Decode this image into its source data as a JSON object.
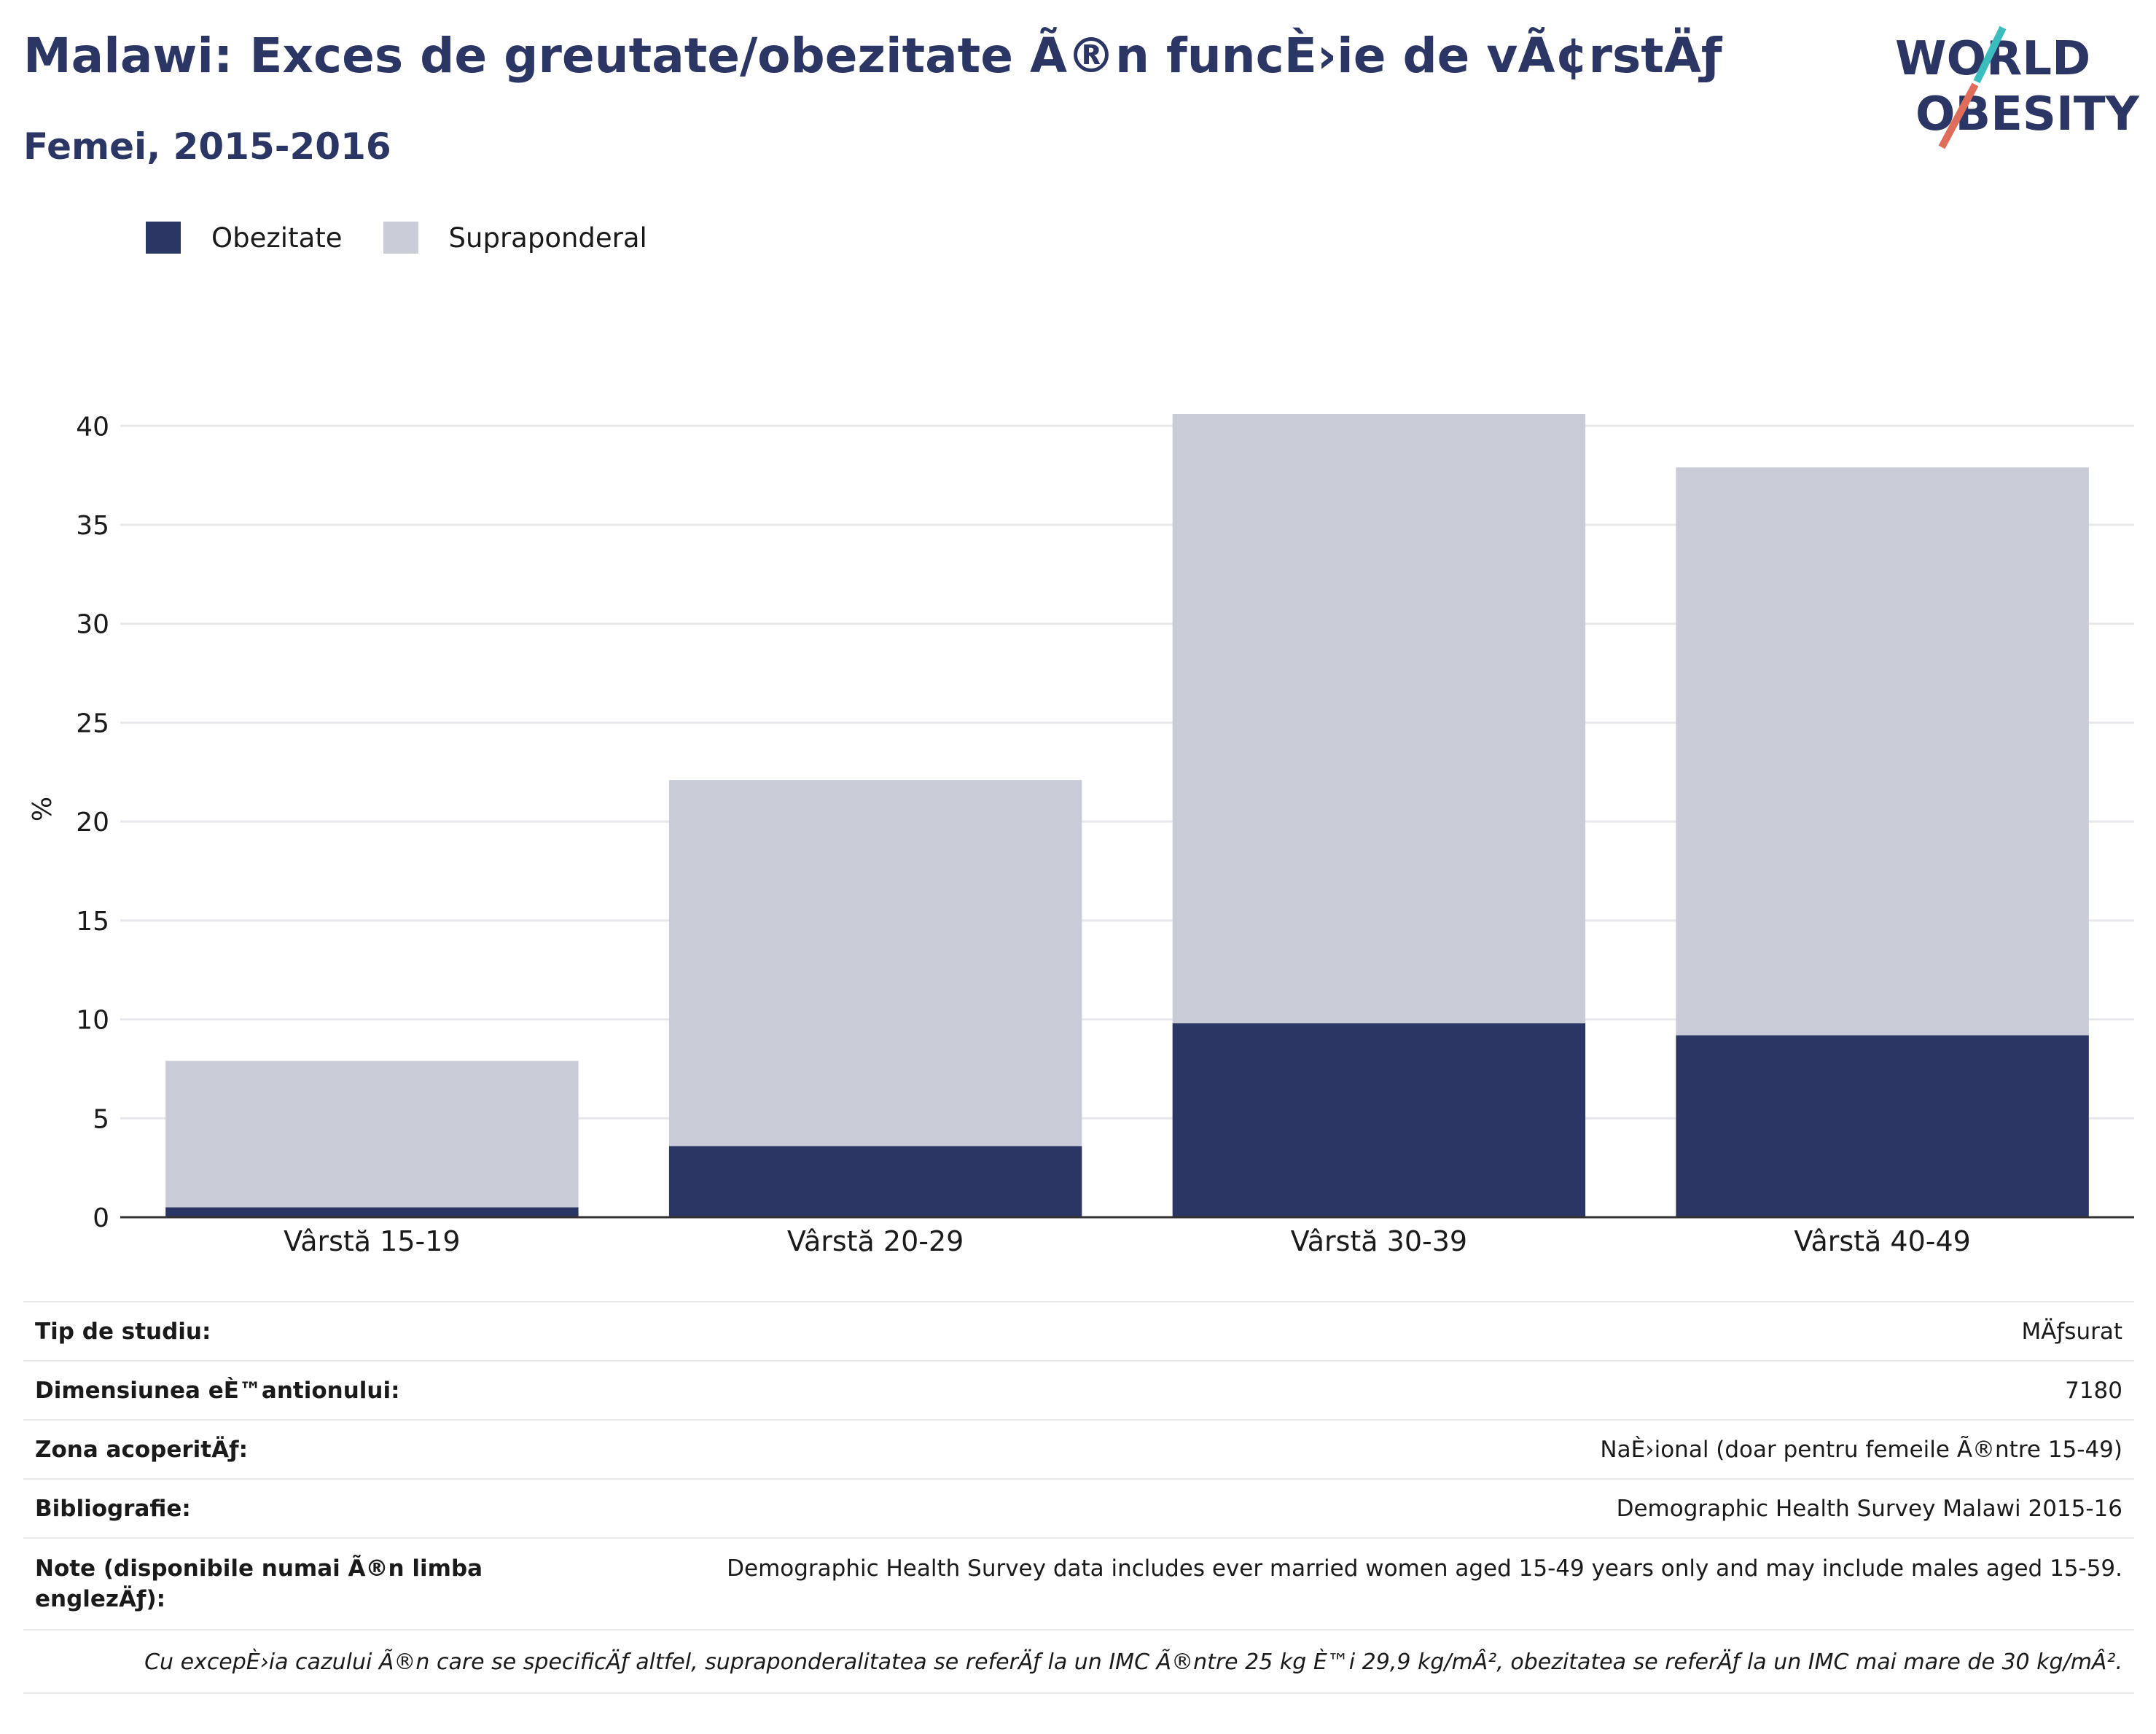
{
  "header": {
    "title": "Malawi: Exces de greutate/obezitate Ã®n funcÈ›ie de vÃ¢rstÄƒ",
    "subtitle": "Femei, 2015-2016"
  },
  "logo": {
    "line1": "WORLD",
    "line2": "OBESITY"
  },
  "colors": {
    "obesity": "#2b3664",
    "overweight": "#c9cbd7",
    "grid": "#e8e8ec",
    "axis": "#333333"
  },
  "legend": {
    "items": [
      "Obezitate",
      "Supraponderal"
    ]
  },
  "chart_data": {
    "type": "bar",
    "stacked": true,
    "title": "",
    "ylabel": "%",
    "xlabel": "",
    "ylim": [
      0,
      42
    ],
    "yticks": [
      0,
      5,
      10,
      15,
      20,
      25,
      30,
      35,
      40
    ],
    "grid": true,
    "legend_position": "top-left",
    "categories": [
      "Vârstă 15-19",
      "Vârstă 20-29",
      "Vârstă 30-39",
      "Vârstă 40-49"
    ],
    "series": [
      {
        "name": "Obezitate",
        "values": [
          0.5,
          3.6,
          9.8,
          9.2
        ]
      },
      {
        "name": "Supraponderal",
        "values": [
          7.4,
          18.5,
          30.8,
          28.7
        ]
      }
    ]
  },
  "info": {
    "rows": [
      {
        "label": "Tip de studiu:",
        "value": "MÄƒsurat"
      },
      {
        "label": "Dimensiunea eÈ™antionului:",
        "value": "7180"
      },
      {
        "label": "Zona acoperitÄƒ:",
        "value": "NaÈ›ional (doar pentru femeile Ã®ntre 15-49)"
      },
      {
        "label": "Bibliografie:",
        "value": "Demographic Health Survey Malawi 2015-16"
      }
    ],
    "notes": {
      "label": "Note (disponibile numai Ã®n limba englezÄƒ):",
      "value": "Demographic Health Survey data includes ever married women aged 15-49 years only and may include males aged 15-59."
    },
    "footnote": "Cu excepÈ›ia cazului Ã®n care se specificÄƒ altfel, supraponderalitatea se referÄƒ la un IMC Ã®ntre 25 kg È™i 29,9 kg/mÂ², obezitatea se referÄƒ la un IMC mai mare de 30 kg/mÂ²."
  }
}
